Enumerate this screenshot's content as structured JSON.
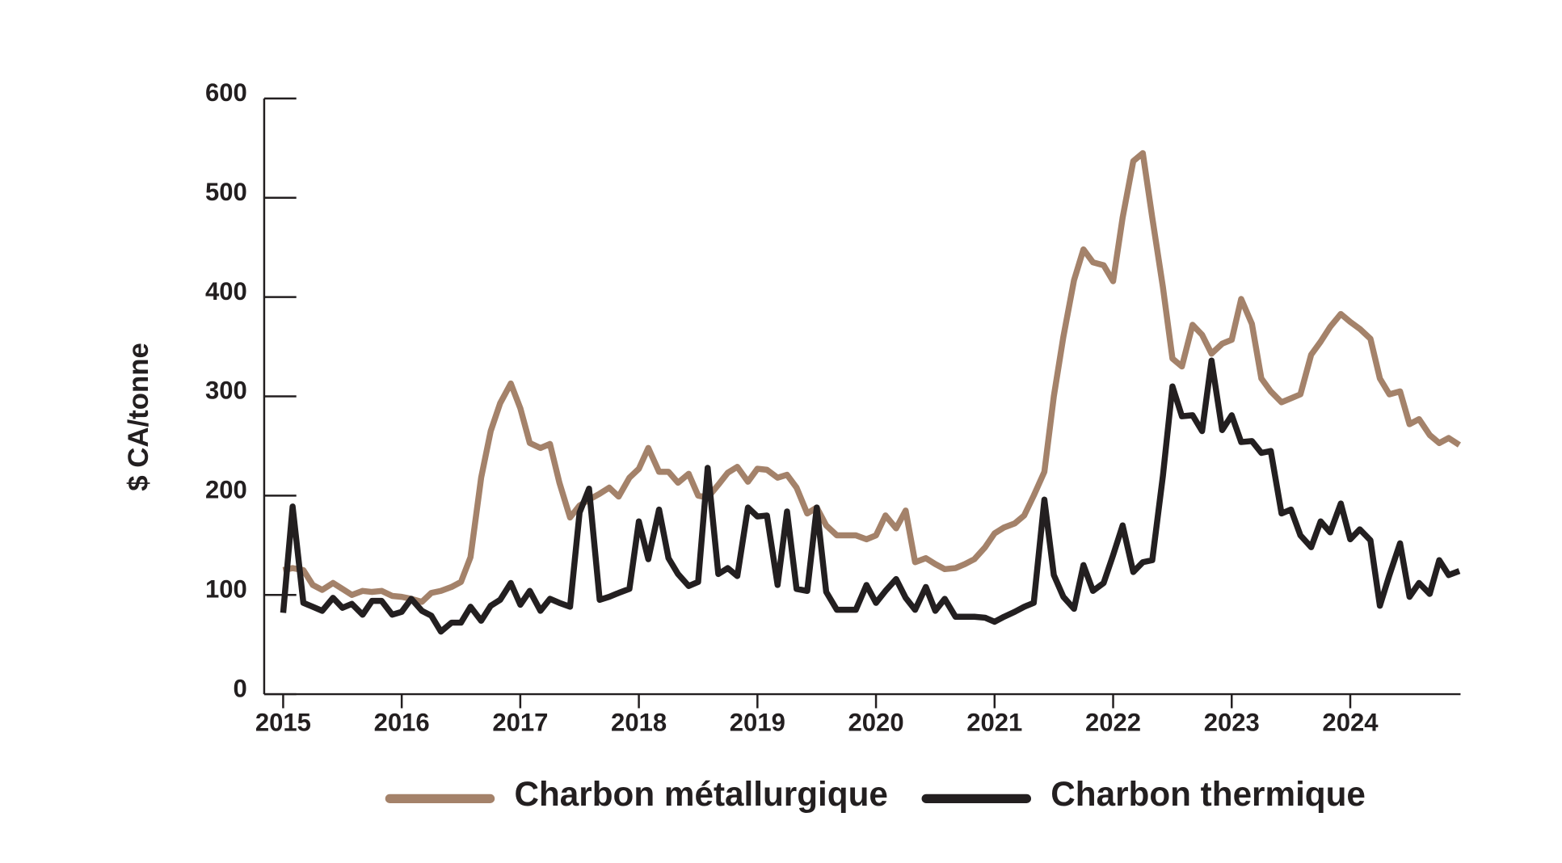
{
  "chart_data": {
    "type": "line",
    "y_label": "$ CA/tonne",
    "x": [
      2015,
      2015.08,
      2015.17,
      2015.25,
      2015.33,
      2015.42,
      2015.5,
      2015.58,
      2015.67,
      2015.75,
      2015.83,
      2015.92,
      2016,
      2016.08,
      2016.17,
      2016.25,
      2016.33,
      2016.42,
      2016.5,
      2016.58,
      2016.67,
      2016.75,
      2016.83,
      2016.92,
      2017,
      2017.08,
      2017.17,
      2017.25,
      2017.33,
      2017.42,
      2017.5,
      2017.58,
      2017.67,
      2017.75,
      2017.83,
      2017.92,
      2018,
      2018.08,
      2018.17,
      2018.25,
      2018.33,
      2018.42,
      2018.5,
      2018.58,
      2018.67,
      2018.75,
      2018.83,
      2018.92,
      2019,
      2019.08,
      2019.17,
      2019.25,
      2019.33,
      2019.42,
      2019.5,
      2019.58,
      2019.67,
      2019.75,
      2019.83,
      2019.92,
      2020,
      2020.08,
      2020.17,
      2020.25,
      2020.33,
      2020.42,
      2020.5,
      2020.58,
      2020.67,
      2020.75,
      2020.83,
      2020.92,
      2021,
      2021.08,
      2021.17,
      2021.25,
      2021.33,
      2021.42,
      2021.5,
      2021.58,
      2021.67,
      2021.75,
      2021.83,
      2021.92,
      2022,
      2022.08,
      2022.17,
      2022.25,
      2022.33,
      2022.42,
      2022.5,
      2022.58,
      2022.67,
      2022.75,
      2022.83,
      2022.92,
      2023,
      2023.08,
      2023.17,
      2023.25,
      2023.33,
      2023.42,
      2023.5,
      2023.58,
      2023.67,
      2023.75,
      2023.83,
      2023.92,
      2024,
      2024.08,
      2024.17,
      2024.25,
      2024.33,
      2024.42,
      2024.5,
      2024.58,
      2024.67,
      2024.75,
      2024.83,
      2024.92
    ],
    "series": [
      {
        "name": "Charbon métallurgique",
        "color": "#a4826a",
        "values": [
          125,
          127,
          125,
          110,
          105,
          112,
          106,
          100,
          104,
          103,
          104,
          99,
          98,
          96,
          93,
          102,
          104,
          108,
          113,
          138,
          218,
          265,
          293,
          313,
          288,
          253,
          248,
          252,
          213,
          178,
          190,
          196,
          202,
          208,
          199,
          218,
          227,
          248,
          224,
          224,
          213,
          222,
          200,
          198,
          211,
          223,
          229,
          214,
          227,
          226,
          218,
          221,
          208,
          182,
          188,
          170,
          160,
          160,
          160,
          156,
          160,
          180,
          167,
          185,
          133,
          137,
          131,
          126,
          127,
          131,
          136,
          148,
          162,
          168,
          172,
          180,
          200,
          224,
          300,
          360,
          417,
          448,
          435,
          432,
          416,
          480,
          537,
          545,
          480,
          410,
          338,
          330,
          372,
          362,
          343,
          353,
          357,
          398,
          373,
          318,
          305,
          294,
          298,
          302,
          342,
          355,
          370,
          383,
          375,
          368,
          358,
          318,
          302,
          305,
          272,
          277,
          261,
          253,
          258,
          251
        ]
      },
      {
        "name": "Charbon thermique",
        "color": "#231f20",
        "values": [
          82,
          189,
          92,
          88,
          84,
          97,
          87,
          91,
          80,
          94,
          94,
          80,
          83,
          96,
          84,
          79,
          63,
          72,
          72,
          88,
          74,
          89,
          95,
          112,
          90,
          104,
          84,
          96,
          92,
          88,
          183,
          207,
          95,
          98,
          102,
          106,
          174,
          136,
          186,
          137,
          121,
          109,
          113,
          228,
          121,
          127,
          119,
          188,
          179,
          180,
          110,
          184,
          106,
          104,
          188,
          103,
          85,
          85,
          85,
          110,
          92,
          104,
          116,
          97,
          85,
          108,
          84,
          96,
          78,
          78,
          78,
          77,
          73,
          78,
          83,
          88,
          92,
          196,
          120,
          98,
          86,
          130,
          104,
          112,
          140,
          170,
          123,
          133,
          135,
          220,
          310,
          280,
          281,
          265,
          336,
          266,
          281,
          254,
          255,
          243,
          245,
          182,
          186,
          160,
          148,
          174,
          163,
          192,
          156,
          166,
          155,
          89,
          120,
          152,
          98,
          112,
          101,
          135,
          120,
          124
        ]
      }
    ],
    "xlim": [
      2014.84,
      2024.93
    ],
    "xticks": [
      2015,
      2016,
      2017,
      2018,
      2019,
      2020,
      2021,
      2022,
      2023,
      2024
    ],
    "ylim": [
      0,
      600
    ],
    "yticks": [
      0,
      100,
      200,
      300,
      400,
      500,
      600
    ],
    "grid": false,
    "legend": "bottom"
  }
}
